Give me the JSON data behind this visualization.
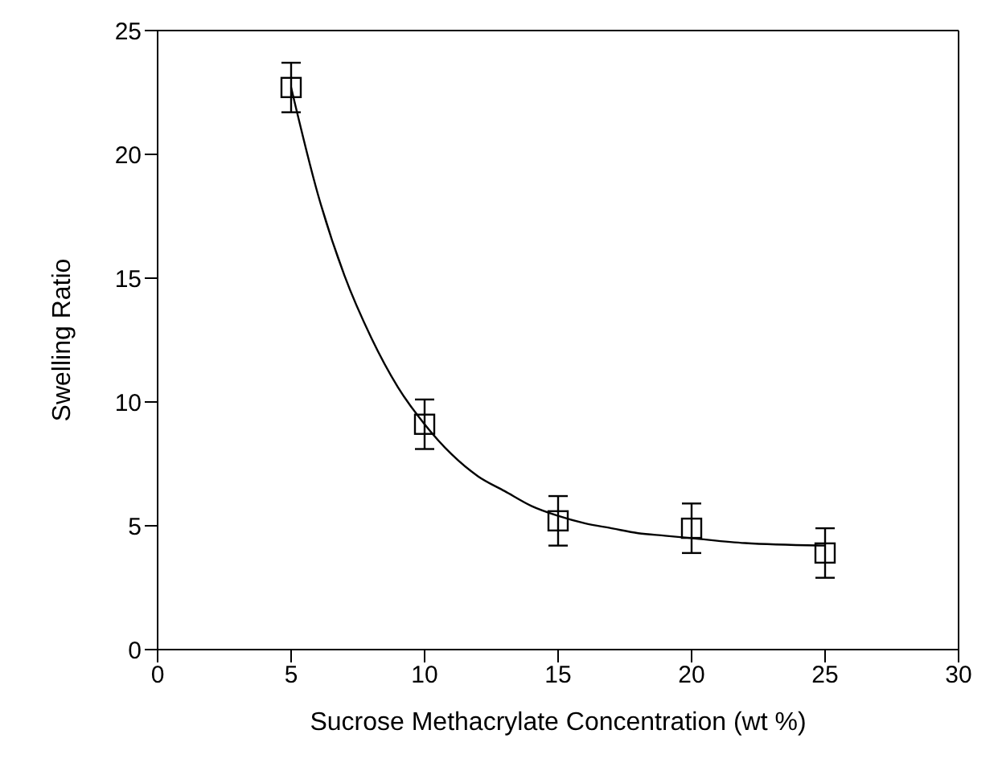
{
  "chart_data": {
    "type": "scatter",
    "xlabel": "Sucrose Methacrylate Concentration (wt %)",
    "ylabel": "Swelling Ratio",
    "x": [
      5,
      10,
      15,
      20,
      25
    ],
    "series": [
      {
        "color": "#000000",
        "marker": "square",
        "values": [
          22.7,
          9.1,
          5.2,
          4.9,
          3.9
        ],
        "errors": [
          1,
          1,
          1,
          1,
          1
        ]
      },
      {
        "type": "line",
        "marker": "none",
        "color": "#000000",
        "x": [
          5,
          6,
          7,
          8,
          9,
          10,
          11,
          12,
          13,
          14,
          15,
          16,
          17,
          18,
          19,
          20,
          22,
          25
        ],
        "values": [
          22.7,
          18.4,
          15.1,
          12.6,
          10.6,
          9.1,
          7.9,
          7.0,
          6.4,
          5.8,
          5.4,
          5.1,
          4.9,
          4.7,
          4.6,
          4.5,
          4.3,
          4.2
        ]
      }
    ],
    "xlim": [
      0,
      30
    ],
    "xticks": [
      0,
      5,
      10,
      15,
      20,
      25,
      30
    ],
    "ylim": [
      0,
      25
    ],
    "yticks": [
      0,
      5,
      10,
      15,
      20,
      25
    ]
  }
}
